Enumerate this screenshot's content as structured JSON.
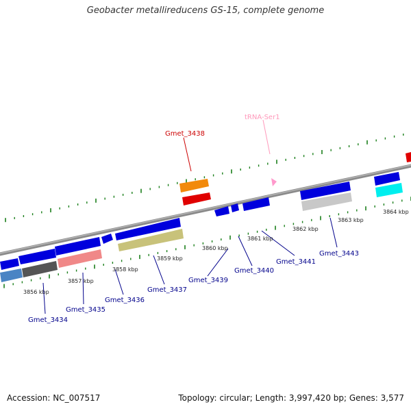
{
  "title": "Geobacter metallireducens GS-15, complete genome",
  "footer": {
    "accession": "Accession: NC_007517",
    "summary": "Topology: circular; Length: 3,997,420 bp; Genes: 3,577"
  },
  "colors": {
    "backbone": "#7a7a7a",
    "tick": "#1a7f1a",
    "gene_label": "#00008b",
    "highlight_label": "#cc0000",
    "trna_label": "#ff99bb"
  },
  "kbp_labels": [
    "3856 kbp",
    "3857 kbp",
    "3858 kbp",
    "3859 kbp",
    "3860 kbp",
    "3861 kbp",
    "3862 kbp",
    "3863 kbp",
    "3864 kbp"
  ],
  "gene_labels": [
    {
      "text": "Gmet_3434",
      "color": "#00008b"
    },
    {
      "text": "Gmet_3435",
      "color": "#00008b"
    },
    {
      "text": "Gmet_3436",
      "color": "#00008b"
    },
    {
      "text": "Gmet_3437",
      "color": "#00008b"
    },
    {
      "text": "Gmet_3439",
      "color": "#00008b"
    },
    {
      "text": "Gmet_3440",
      "color": "#00008b"
    },
    {
      "text": "Gmet_3441",
      "color": "#00008b"
    },
    {
      "text": "Gmet_3443",
      "color": "#00008b"
    },
    {
      "text": "Gmet_3438",
      "color": "#cc0000"
    },
    {
      "text": "tRNA-Ser1",
      "color": "#ff99bb"
    }
  ]
}
